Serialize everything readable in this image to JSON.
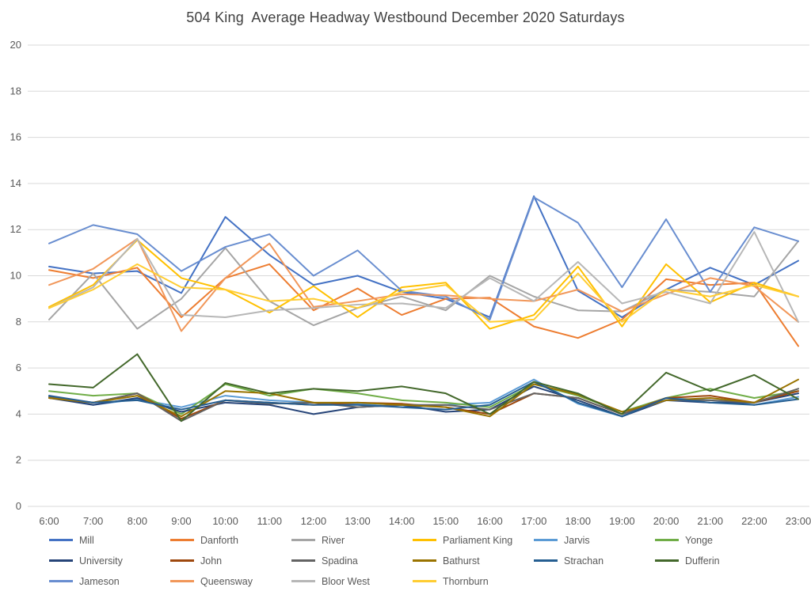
{
  "chart_data": {
    "type": "line",
    "title": "504 King  Average Headway Westbound December 2020 Saturdays",
    "xlabel": "",
    "ylabel": "",
    "ylim": [
      0,
      20
    ],
    "yticks": [
      0,
      2,
      4,
      6,
      8,
      10,
      12,
      14,
      16,
      18,
      20
    ],
    "grid": true,
    "legend_position": "bottom",
    "x": [
      "6:00",
      "7:00",
      "8:00",
      "9:00",
      "10:00",
      "11:00",
      "12:00",
      "13:00",
      "14:00",
      "15:00",
      "16:00",
      "17:00",
      "18:00",
      "19:00",
      "20:00",
      "21:00",
      "22:00",
      "23:00"
    ],
    "series": [
      {
        "name": "Mill",
        "color": "#4472C4",
        "values": [
          10.4,
          10.1,
          10.2,
          9.25,
          12.55,
          10.9,
          9.6,
          10.0,
          9.3,
          9.0,
          8.2,
          13.45,
          9.35,
          8.2,
          9.4,
          10.35,
          9.6,
          10.65
        ]
      },
      {
        "name": "Danforth",
        "color": "#ED7D31",
        "values": [
          10.25,
          9.9,
          10.35,
          8.2,
          9.9,
          10.5,
          8.5,
          9.45,
          8.3,
          9.0,
          9.05,
          7.8,
          7.3,
          8.1,
          9.85,
          9.6,
          9.7,
          6.95
        ]
      },
      {
        "name": "River",
        "color": "#A5A5A5",
        "values": [
          8.1,
          10.1,
          7.7,
          9.0,
          11.2,
          8.9,
          7.85,
          8.6,
          9.1,
          8.5,
          10.0,
          9.1,
          8.5,
          8.45,
          9.4,
          9.3,
          9.1,
          11.5
        ]
      },
      {
        "name": "Parliament King",
        "color": "#FFC000",
        "values": [
          8.65,
          9.6,
          11.55,
          9.9,
          9.4,
          8.4,
          9.55,
          8.2,
          9.5,
          9.7,
          7.7,
          8.3,
          10.4,
          7.8,
          10.5,
          8.85,
          9.7,
          9.1
        ]
      },
      {
        "name": "Jarvis",
        "color": "#5B9BD5",
        "values": [
          4.8,
          4.4,
          4.65,
          4.3,
          4.8,
          4.6,
          4.5,
          4.45,
          4.3,
          4.4,
          4.5,
          5.5,
          4.45,
          3.9,
          4.7,
          4.6,
          4.4,
          4.75
        ]
      },
      {
        "name": "Yonge",
        "color": "#70AD47",
        "values": [
          5.0,
          4.8,
          4.9,
          4.0,
          5.3,
          4.8,
          5.1,
          4.9,
          4.6,
          4.5,
          4.3,
          5.3,
          4.8,
          4.1,
          4.7,
          5.1,
          4.7,
          5.0
        ]
      },
      {
        "name": "University",
        "color": "#264478",
        "values": [
          4.7,
          4.4,
          4.7,
          4.1,
          4.5,
          4.4,
          4.0,
          4.3,
          4.4,
          4.1,
          4.2,
          5.2,
          4.6,
          3.9,
          4.6,
          4.5,
          4.5,
          4.9
        ]
      },
      {
        "name": "John",
        "color": "#9E480E",
        "values": [
          4.7,
          4.5,
          4.9,
          3.8,
          4.6,
          4.5,
          4.4,
          4.5,
          4.45,
          4.3,
          4.0,
          4.9,
          4.7,
          4.0,
          4.7,
          4.8,
          4.5,
          5.0
        ]
      },
      {
        "name": "Spadina",
        "color": "#636363",
        "values": [
          4.75,
          4.5,
          4.9,
          3.7,
          4.6,
          4.45,
          4.5,
          4.3,
          4.4,
          4.4,
          4.2,
          4.9,
          4.7,
          4.0,
          4.6,
          4.6,
          4.5,
          5.1
        ]
      },
      {
        "name": "Bathurst",
        "color": "#997300",
        "values": [
          4.7,
          4.5,
          4.8,
          3.9,
          5.0,
          4.9,
          4.5,
          4.5,
          4.4,
          4.3,
          3.9,
          5.3,
          4.85,
          4.1,
          4.6,
          4.7,
          4.5,
          5.5
        ]
      },
      {
        "name": "Strachan",
        "color": "#255E91",
        "values": [
          4.8,
          4.5,
          4.6,
          4.2,
          4.6,
          4.5,
          4.4,
          4.4,
          4.3,
          4.2,
          4.4,
          5.4,
          4.5,
          3.9,
          4.7,
          4.5,
          4.4,
          4.65
        ]
      },
      {
        "name": "Dufferin",
        "color": "#43682B",
        "values": [
          5.3,
          5.15,
          6.6,
          3.7,
          5.35,
          4.9,
          5.1,
          5.0,
          5.2,
          4.9,
          4.0,
          5.4,
          4.9,
          4.0,
          5.8,
          5.0,
          5.7,
          4.65
        ]
      },
      {
        "name": "Jameson",
        "color": "#698ED0",
        "values": [
          11.4,
          12.2,
          11.8,
          10.2,
          11.25,
          11.8,
          10.0,
          11.1,
          9.35,
          9.1,
          8.1,
          13.4,
          12.3,
          9.5,
          12.45,
          9.3,
          12.1,
          11.5
        ]
      },
      {
        "name": "Queensway",
        "color": "#F1975A",
        "values": [
          9.6,
          10.3,
          11.6,
          7.6,
          9.9,
          11.4,
          8.65,
          8.9,
          9.2,
          9.15,
          9.0,
          8.9,
          9.4,
          8.45,
          9.2,
          9.9,
          9.55,
          8.0
        ]
      },
      {
        "name": "Bloor West",
        "color": "#B7B7B7",
        "values": [
          8.6,
          9.5,
          11.6,
          8.3,
          8.2,
          8.5,
          8.6,
          8.75,
          8.8,
          8.6,
          9.9,
          8.9,
          10.6,
          8.8,
          9.3,
          8.8,
          11.9,
          8.0
        ]
      },
      {
        "name": "Thornburn",
        "color": "#FFCD33",
        "values": [
          8.6,
          9.4,
          10.5,
          9.5,
          9.4,
          8.9,
          9.0,
          8.6,
          9.3,
          9.6,
          8.0,
          8.1,
          10.1,
          8.0,
          9.4,
          9.1,
          9.6,
          9.1
        ]
      }
    ]
  }
}
